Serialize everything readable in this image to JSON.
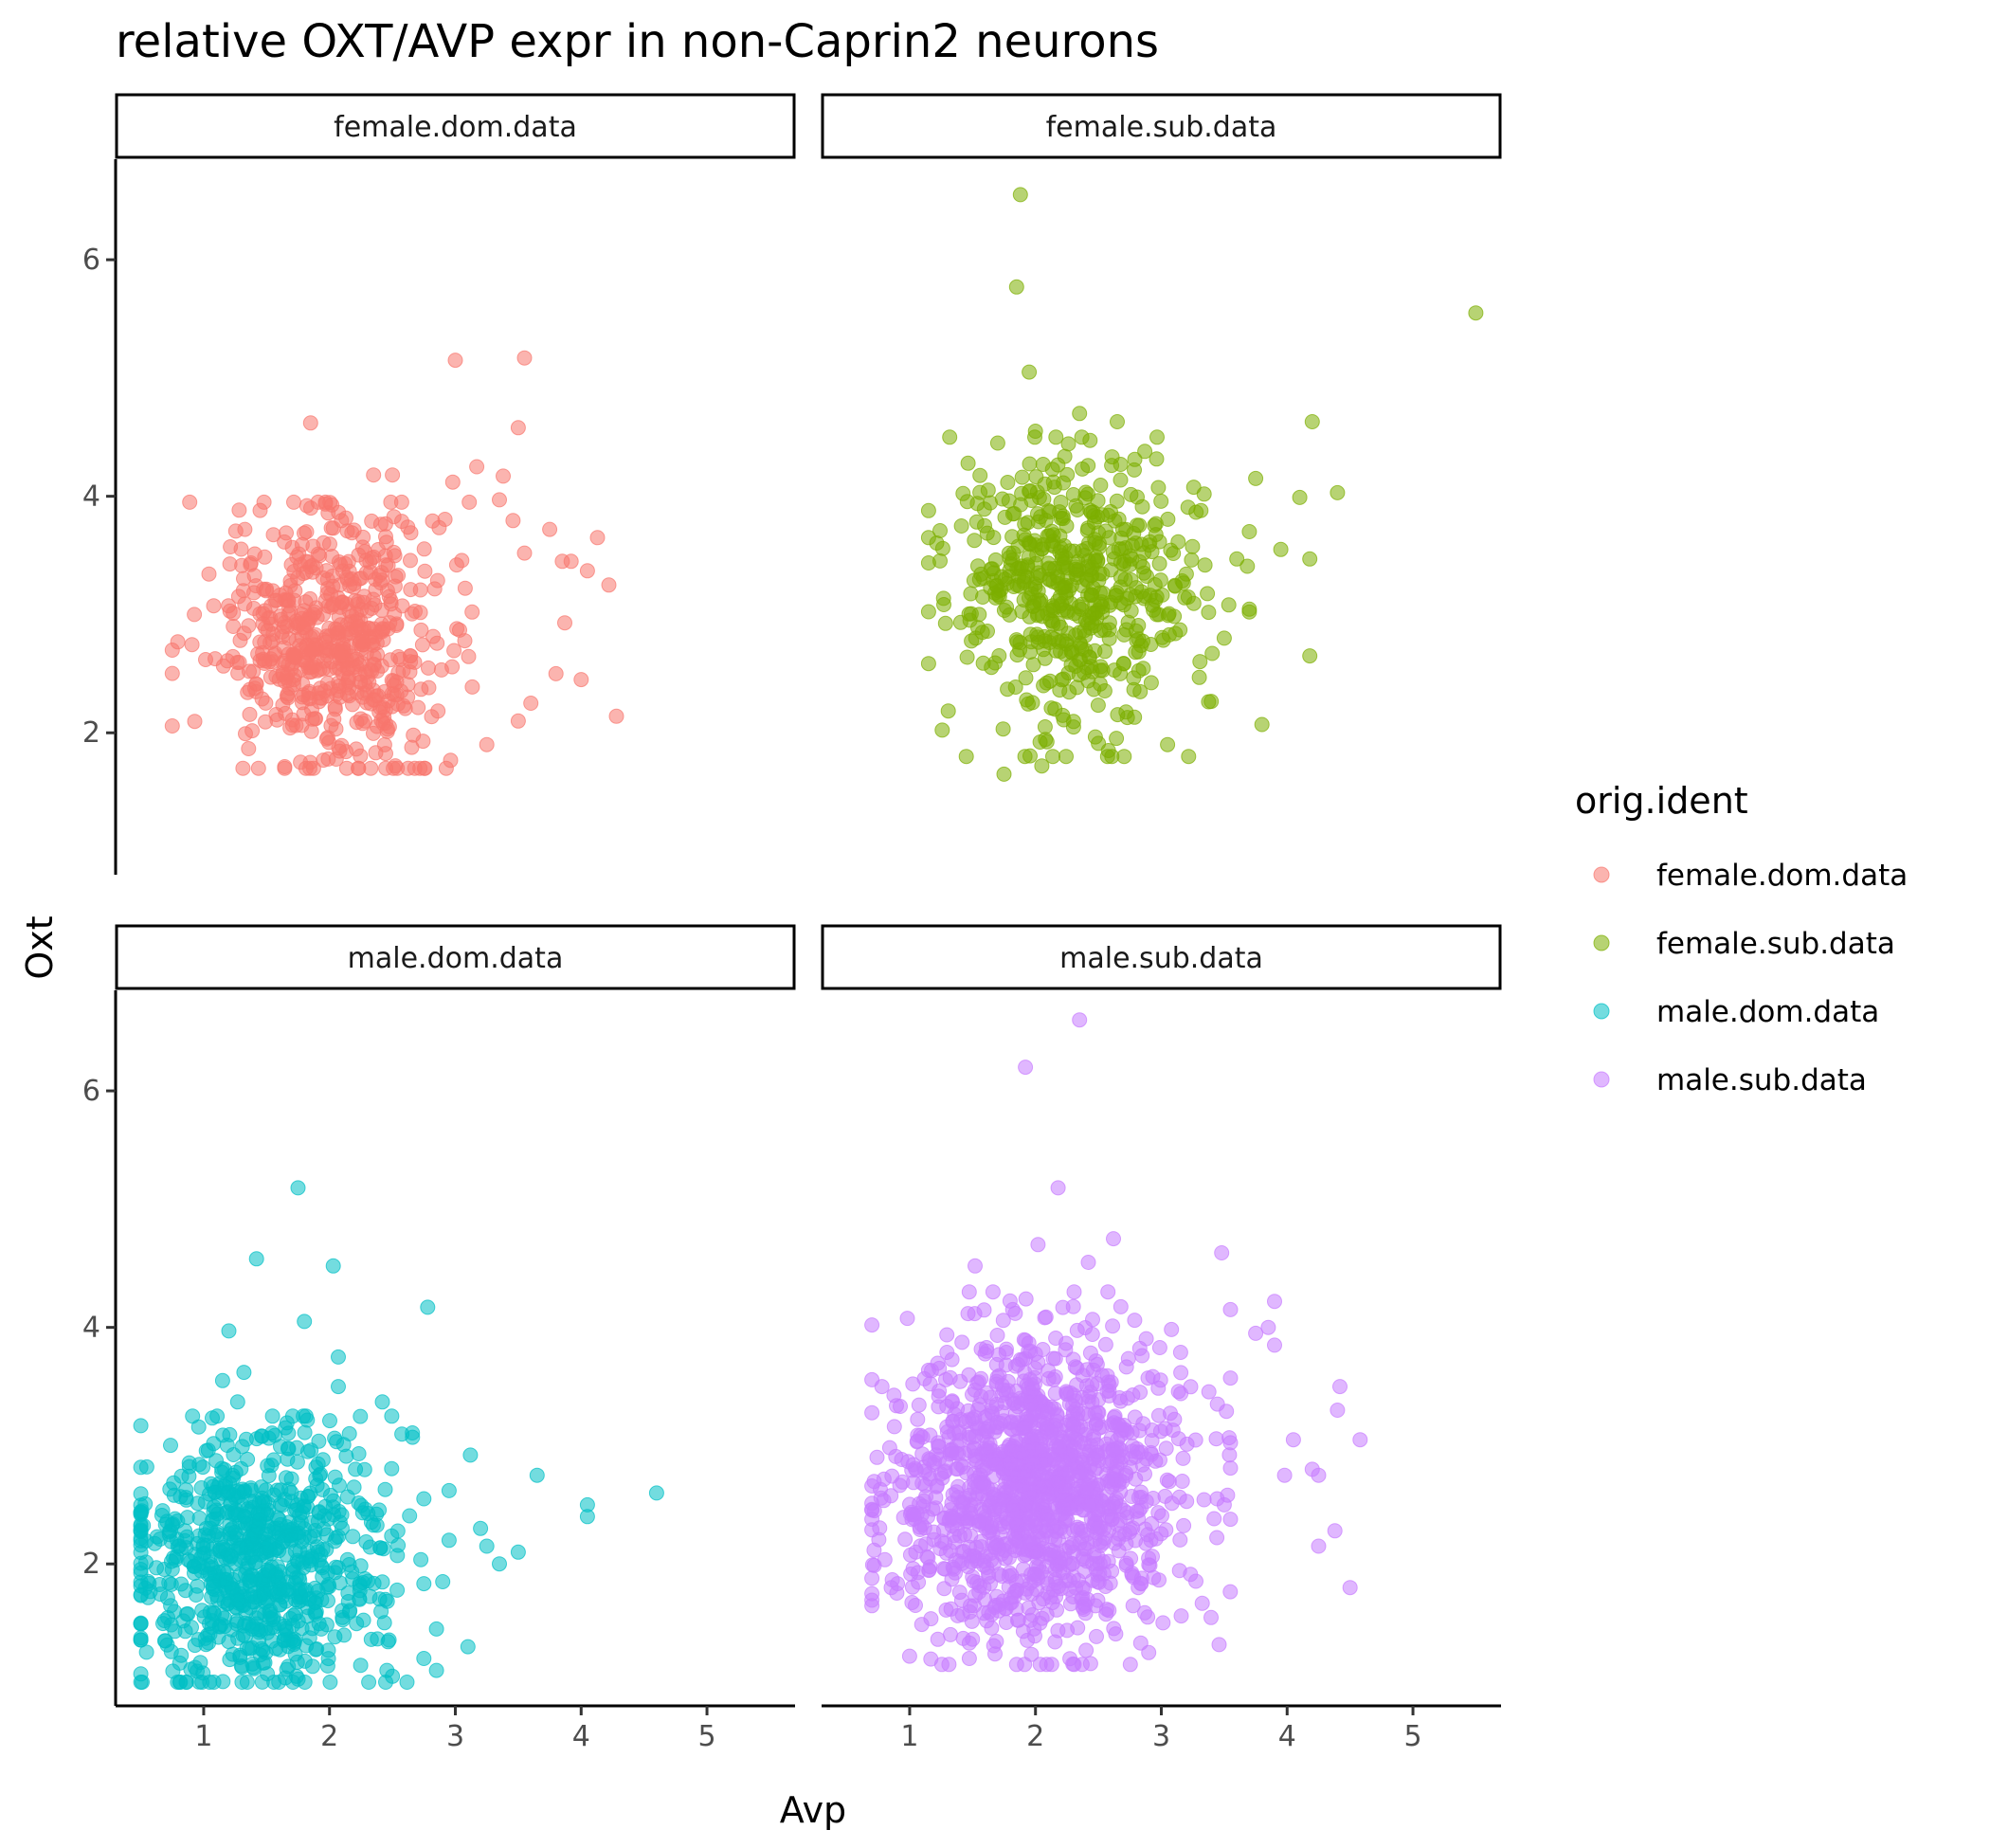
{
  "chart_data": {
    "type": "scatter",
    "title": "relative OXT/AVP expr in non-Caprin2 neurons",
    "xlabel": "Avp",
    "ylabel": "Oxt",
    "xlim": [
      0.3,
      5.7
    ],
    "ylim": [
      0.8,
      6.85
    ],
    "xticks": [
      1,
      2,
      3,
      4,
      5
    ],
    "yticks": [
      2,
      4,
      6
    ],
    "grid": false,
    "legend": {
      "title": "orig.ident",
      "position": "right"
    },
    "facets": [
      "female.dom.data",
      "female.sub.data",
      "male.dom.data",
      "male.sub.data"
    ],
    "series": [
      {
        "name": "female.dom.data",
        "color": "#F8766D",
        "cloud": {
          "count": 620,
          "x_center": 2.05,
          "x_sd": 0.45,
          "y_center": 2.75,
          "y_sd": 0.55,
          "x_range": [
            0.75,
            3.9
          ],
          "y_range": [
            1.7,
            3.95
          ]
        },
        "points": [
          [
            1.85,
            4.62
          ],
          [
            3.0,
            5.15
          ],
          [
            3.55,
            5.17
          ],
          [
            3.5,
            4.58
          ],
          [
            3.17,
            4.25
          ],
          [
            3.38,
            4.17
          ],
          [
            2.35,
            4.18
          ],
          [
            2.5,
            4.18
          ],
          [
            2.98,
            4.12
          ],
          [
            3.75,
            3.72
          ],
          [
            4.13,
            3.65
          ],
          [
            3.85,
            3.45
          ],
          [
            4.22,
            3.25
          ],
          [
            3.87,
            2.93
          ],
          [
            4.28,
            2.14
          ],
          [
            4.0,
            2.45
          ],
          [
            3.8,
            2.5
          ],
          [
            3.6,
            2.25
          ],
          [
            4.05,
            3.37
          ],
          [
            3.55,
            3.52
          ],
          [
            3.35,
            3.97
          ],
          [
            3.92,
            3.45
          ],
          [
            3.25,
            1.9
          ],
          [
            3.5,
            2.1
          ]
        ]
      },
      {
        "name": "female.sub.data",
        "color": "#7CAE00",
        "cloud": {
          "count": 560,
          "x_center": 2.3,
          "x_sd": 0.5,
          "y_center": 3.25,
          "y_sd": 0.55,
          "x_range": [
            1.15,
            3.7
          ],
          "y_range": [
            1.8,
            4.5
          ]
        },
        "points": [
          [
            1.88,
            6.55
          ],
          [
            1.85,
            5.77
          ],
          [
            5.5,
            5.55
          ],
          [
            1.95,
            5.05
          ],
          [
            4.2,
            4.63
          ],
          [
            2.65,
            4.63
          ],
          [
            2.35,
            4.7
          ],
          [
            4.4,
            4.03
          ],
          [
            4.1,
            3.99
          ],
          [
            4.18,
            3.47
          ],
          [
            3.95,
            3.55
          ],
          [
            3.6,
            3.47
          ],
          [
            4.18,
            2.65
          ],
          [
            3.8,
            2.07
          ],
          [
            3.75,
            4.15
          ],
          [
            1.75,
            1.65
          ],
          [
            1.45,
            1.8
          ],
          [
            2.58,
            1.85
          ],
          [
            2.05,
            1.72
          ],
          [
            3.05,
            1.9
          ],
          [
            1.15,
            3.65
          ],
          [
            3.5,
            2.8
          ],
          [
            2.0,
            4.55
          ],
          [
            1.7,
            4.45
          ]
        ]
      },
      {
        "name": "male.dom.data",
        "color": "#00BFC4",
        "cloud": {
          "count": 820,
          "x_center": 1.45,
          "x_sd": 0.5,
          "y_center": 2.05,
          "y_sd": 0.55,
          "x_range": [
            0.5,
            2.75
          ],
          "y_range": [
            1.0,
            3.25
          ]
        },
        "points": [
          [
            1.75,
            5.18
          ],
          [
            1.42,
            4.58
          ],
          [
            2.03,
            4.52
          ],
          [
            2.78,
            4.17
          ],
          [
            1.8,
            4.05
          ],
          [
            1.2,
            3.97
          ],
          [
            2.07,
            3.75
          ],
          [
            1.15,
            3.55
          ],
          [
            1.32,
            3.62
          ],
          [
            1.27,
            3.37
          ],
          [
            2.07,
            3.5
          ],
          [
            2.42,
            3.37
          ],
          [
            3.12,
            2.92
          ],
          [
            3.65,
            2.75
          ],
          [
            4.05,
            2.5
          ],
          [
            4.05,
            2.4
          ],
          [
            4.6,
            2.6
          ],
          [
            3.5,
            2.1
          ],
          [
            3.2,
            2.3
          ],
          [
            3.25,
            2.15
          ],
          [
            3.35,
            2.0
          ],
          [
            2.95,
            2.2
          ],
          [
            3.1,
            1.3
          ],
          [
            2.85,
            1.1
          ],
          [
            2.95,
            2.62
          ],
          [
            2.85,
            1.45
          ],
          [
            2.5,
            1.05
          ],
          [
            0.5,
            1.0
          ],
          [
            2.9,
            1.85
          ]
        ]
      },
      {
        "name": "male.sub.data",
        "color": "#C77CFF",
        "cloud": {
          "count": 1400,
          "x_center": 2.05,
          "x_sd": 0.55,
          "y_center": 2.65,
          "y_sd": 0.62,
          "x_range": [
            0.7,
            3.55
          ],
          "y_range": [
            1.15,
            4.3
          ]
        },
        "points": [
          [
            2.35,
            6.6
          ],
          [
            1.92,
            6.2
          ],
          [
            2.18,
            5.18
          ],
          [
            2.02,
            4.7
          ],
          [
            2.62,
            4.75
          ],
          [
            3.48,
            4.63
          ],
          [
            2.42,
            4.55
          ],
          [
            1.52,
            4.52
          ],
          [
            3.9,
            4.22
          ],
          [
            3.55,
            4.15
          ],
          [
            3.85,
            4.0
          ],
          [
            3.75,
            3.95
          ],
          [
            3.9,
            3.85
          ],
          [
            4.05,
            3.05
          ],
          [
            4.42,
            3.5
          ],
          [
            4.4,
            3.3
          ],
          [
            4.58,
            3.05
          ],
          [
            4.2,
            2.8
          ],
          [
            4.25,
            2.75
          ],
          [
            3.98,
            2.75
          ],
          [
            4.38,
            2.28
          ],
          [
            4.25,
            2.15
          ],
          [
            4.5,
            1.8
          ],
          [
            3.5,
            2.5
          ],
          [
            0.78,
            3.5
          ],
          [
            0.72,
            2.45
          ],
          [
            1.0,
            1.22
          ],
          [
            1.85,
            1.15
          ],
          [
            2.9,
            1.25
          ]
        ]
      }
    ]
  }
}
